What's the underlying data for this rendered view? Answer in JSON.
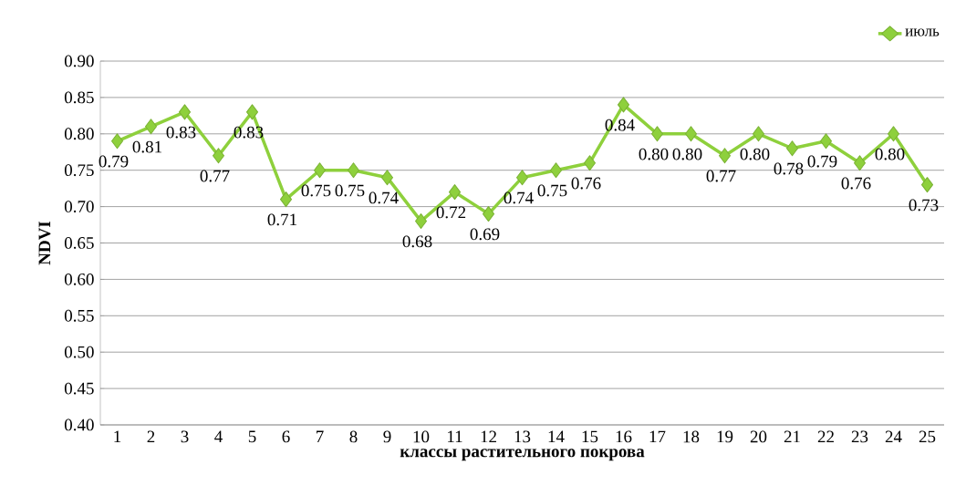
{
  "chart_data": {
    "type": "line",
    "xlabel": "классы растительного покрова",
    "ylabel": "NDVI",
    "categories": [
      "1",
      "2",
      "3",
      "4",
      "5",
      "6",
      "7",
      "8",
      "9",
      "10",
      "11",
      "12",
      "13",
      "14",
      "15",
      "16",
      "17",
      "18",
      "19",
      "20",
      "21",
      "22",
      "23",
      "24",
      "25"
    ],
    "series": [
      {
        "name": "июль",
        "color": "#8ed03c",
        "values": [
          0.79,
          0.81,
          0.83,
          0.77,
          0.83,
          0.71,
          0.75,
          0.75,
          0.74,
          0.68,
          0.72,
          0.69,
          0.74,
          0.75,
          0.76,
          0.84,
          0.8,
          0.8,
          0.77,
          0.8,
          0.78,
          0.79,
          0.76,
          0.8,
          0.73
        ]
      }
    ],
    "value_labels": [
      "0.79",
      "0.81",
      "0.83",
      "0.77",
      "0.83",
      "0.71",
      "0.75",
      "0.75",
      "0.74",
      "0.68",
      "0.72",
      "0.69",
      "0.74",
      "0.75",
      "0.76",
      "0.84",
      "0.80",
      "0.80",
      "0.77",
      "0.80",
      "0.78",
      "0.79",
      "0.76",
      "0.80",
      "0.73"
    ],
    "ylim": [
      0.4,
      0.9
    ],
    "yticks": [
      {
        "value": 0.4,
        "label": "0.40"
      },
      {
        "value": 0.45,
        "label": "0.45"
      },
      {
        "value": 0.5,
        "label": "0.50"
      },
      {
        "value": 0.55,
        "label": "0.55"
      },
      {
        "value": 0.6,
        "label": "0.60"
      },
      {
        "value": 0.65,
        "label": "0.65"
      },
      {
        "value": 0.7,
        "label": "0.70"
      },
      {
        "value": 0.75,
        "label": "0.75"
      },
      {
        "value": 0.8,
        "label": "0.80"
      },
      {
        "value": 0.85,
        "label": "0.85"
      },
      {
        "value": 0.9,
        "label": "0.90"
      }
    ],
    "grid": "y",
    "legend": "top right",
    "marker": "diamond",
    "line_style": "solid"
  }
}
